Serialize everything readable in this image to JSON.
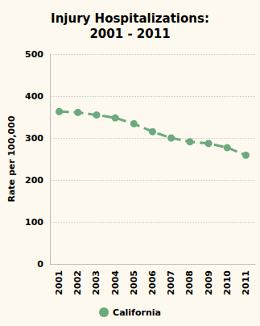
{
  "chart_data": {
    "type": "line",
    "title": "Injury Hospitalizations:\n2001 - 2011",
    "y_label": "Rate per 100,000",
    "categories": [
      "2001",
      "2002",
      "2003",
      "2004",
      "2005",
      "2006",
      "2007",
      "2008",
      "2009",
      "2010",
      "2011"
    ],
    "series": [
      {
        "name": "California",
        "color": "#6aaa7c",
        "marker": "circle",
        "line_style": "dashed",
        "values": [
          363,
          361,
          355,
          348,
          334,
          315,
          300,
          291,
          287,
          277,
          259
        ]
      }
    ],
    "ylim": [
      0,
      500
    ],
    "yticks": [
      0,
      100,
      200,
      300,
      400,
      500
    ],
    "grid": true,
    "legend": "bottom"
  }
}
